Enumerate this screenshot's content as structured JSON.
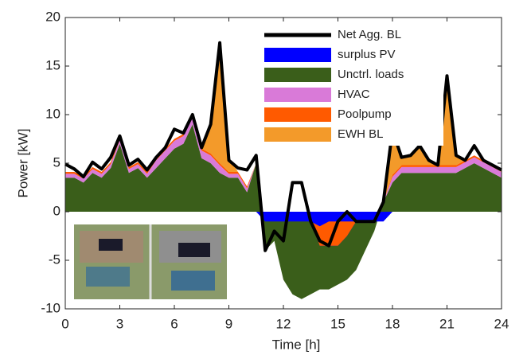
{
  "chart_data": {
    "type": "area",
    "xlabel": "Time [h]",
    "ylabel": "Power [kW]",
    "xlim": [
      0,
      24
    ],
    "xticks": [
      0,
      3,
      6,
      9,
      12,
      15,
      18,
      21,
      24
    ],
    "ylim": [
      -10,
      20
    ],
    "yticks": [
      -10,
      -5,
      0,
      5,
      10,
      15,
      20
    ],
    "legend": "upper right",
    "x": [
      0,
      0.5,
      1,
      1.5,
      2,
      2.5,
      3,
      3.5,
      4,
      4.5,
      5,
      5.5,
      6,
      6.5,
      7,
      7.5,
      8,
      8.5,
      9,
      9.5,
      10,
      10.5,
      11,
      11.5,
      12,
      12.5,
      13,
      13.5,
      14,
      14.5,
      15,
      15.5,
      16,
      16.5,
      17,
      17.5,
      18,
      18.5,
      19,
      19.5,
      20,
      20.5,
      21,
      21.5,
      22,
      22.5,
      23,
      23.5,
      24
    ],
    "series": [
      {
        "name": "Net Agg. BL",
        "type": "line",
        "color": "#000000",
        "values": [
          4.9,
          4.4,
          3.6,
          5.1,
          4.4,
          5.6,
          7.8,
          4.8,
          5.4,
          4.3,
          5.6,
          6.6,
          8.5,
          8.1,
          10,
          6.6,
          9,
          17.4,
          5.3,
          4.5,
          4.3,
          5.8,
          -4,
          -2,
          -3,
          3,
          3,
          -1,
          -3,
          -3.5,
          -1,
          0,
          -1,
          -1,
          -1,
          1,
          8.4,
          5.6,
          5.8,
          6.8,
          5.3,
          4.8,
          14,
          5.8,
          5.3,
          6.8,
          5.3,
          4.8,
          4.3
        ]
      },
      {
        "name": "surplus PV",
        "type": "area",
        "color": "#0000ff",
        "values": [
          0,
          0,
          0,
          0,
          0,
          0,
          0,
          0,
          0,
          0,
          0,
          0,
          0,
          0,
          0,
          0,
          0,
          0,
          0,
          0,
          0,
          0,
          -1,
          -1,
          -1,
          -1,
          -1,
          -1,
          -3.5,
          -3.5,
          -3.5,
          -2.5,
          -1,
          -1,
          -1,
          -1,
          0,
          0,
          0,
          0,
          0,
          0,
          0,
          0,
          0,
          0,
          0,
          0,
          0
        ]
      },
      {
        "name": "Unctrl. loads",
        "type": "area",
        "color": "#3a5e1a",
        "values": [
          3.5,
          3.5,
          3,
          4,
          3.5,
          4.5,
          7,
          4,
          4.5,
          3.5,
          4.5,
          5.5,
          6.5,
          7,
          9,
          5.5,
          5,
          4,
          3.5,
          3.5,
          2,
          5,
          -4,
          -3,
          -7,
          -8.5,
          -9,
          -8.5,
          -8,
          -8,
          -7.5,
          -7,
          -6,
          -4,
          -2,
          1,
          3,
          4,
          4,
          4,
          4,
          4,
          4,
          4,
          4.5,
          5,
          4.5,
          4,
          3.5
        ]
      },
      {
        "name": "HVAC",
        "type": "area",
        "color": "#d97ad8",
        "values": [
          0.4,
          0.4,
          0.4,
          0.4,
          0.4,
          0.4,
          0.4,
          0.4,
          0.4,
          0.4,
          0.8,
          0.8,
          0.8,
          0.8,
          0.8,
          0.8,
          0.8,
          0.8,
          0.4,
          0.4,
          0.4,
          0,
          0,
          0,
          0,
          0,
          0,
          0,
          0,
          0,
          0,
          0,
          0,
          0,
          0,
          0,
          0.6,
          0.6,
          0.6,
          0.6,
          0.6,
          0.6,
          0.6,
          0.6,
          0.6,
          0.6,
          0.6,
          0.6,
          0.6
        ]
      },
      {
        "name": "Poolpump",
        "type": "area",
        "color": "#ff5a00",
        "values": [
          0.2,
          0.2,
          0.2,
          0.2,
          0.2,
          0.2,
          0.2,
          0.2,
          0.2,
          0.2,
          0.2,
          0.2,
          0.2,
          0.2,
          0.2,
          0.2,
          0.2,
          0.2,
          0.2,
          0.2,
          0.2,
          0,
          0,
          0,
          0,
          0,
          0,
          0,
          2,
          2.5,
          2.5,
          1.5,
          0,
          0,
          0,
          0,
          0.2,
          0.2,
          0.2,
          0.2,
          0.2,
          0.2,
          0.2,
          0.2,
          0.2,
          0.2,
          0.2,
          0.2,
          0.2
        ]
      },
      {
        "name": "EWH BL",
        "type": "area",
        "color": "#f39a2a",
        "values": [
          0,
          0,
          0,
          0,
          0,
          0,
          0,
          0,
          0,
          0,
          0,
          0,
          0,
          0,
          0,
          0,
          3,
          12,
          1.5,
          0,
          0,
          0,
          0,
          0,
          0,
          0,
          0,
          0,
          0,
          0,
          0,
          0,
          0,
          0,
          0,
          0,
          5,
          1,
          1,
          2,
          0.5,
          0,
          9,
          1,
          0,
          0,
          0,
          0,
          0
        ]
      }
    ]
  }
}
